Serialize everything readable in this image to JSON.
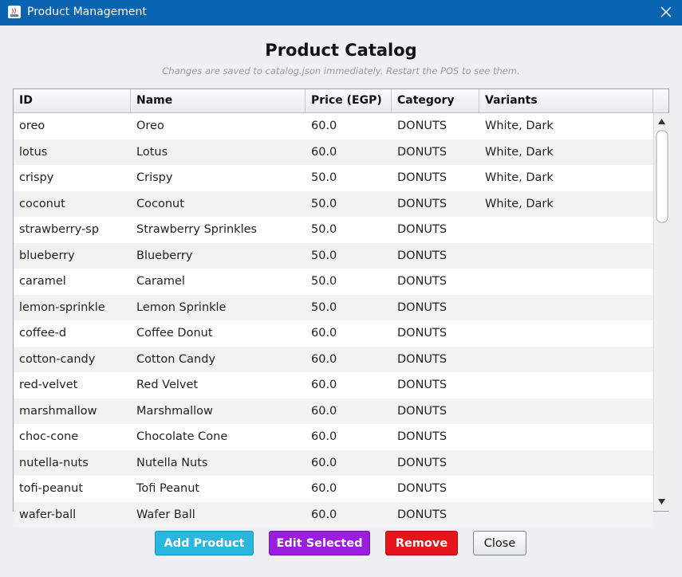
{
  "window": {
    "title": "Product Management"
  },
  "header": {
    "title": "Product Catalog",
    "subtitle": "Changes are saved to catalog.json immediately. Restart the POS to see them."
  },
  "table": {
    "columns": [
      "ID",
      "Name",
      "Price (EGP)",
      "Category",
      "Variants"
    ],
    "rows": [
      {
        "id": "oreo",
        "name": "Oreo",
        "price": "60.0",
        "category": "DONUTS",
        "variants": "White, Dark"
      },
      {
        "id": "lotus",
        "name": "Lotus",
        "price": "60.0",
        "category": "DONUTS",
        "variants": "White, Dark"
      },
      {
        "id": "crispy",
        "name": "Crispy",
        "price": "50.0",
        "category": "DONUTS",
        "variants": "White, Dark"
      },
      {
        "id": "coconut",
        "name": "Coconut",
        "price": "50.0",
        "category": "DONUTS",
        "variants": "White, Dark"
      },
      {
        "id": "strawberry-sp",
        "name": "Strawberry Sprinkles",
        "price": "50.0",
        "category": "DONUTS"
      },
      {
        "id": "blueberry",
        "name": "Blueberry",
        "price": "50.0",
        "category": "DONUTS"
      },
      {
        "id": "caramel",
        "name": "Caramel",
        "price": "50.0",
        "category": "DONUTS"
      },
      {
        "id": "lemon-sprinkle",
        "name": "Lemon Sprinkle",
        "price": "50.0",
        "category": "DONUTS"
      },
      {
        "id": "coffee-d",
        "name": "Coffee Donut",
        "price": "60.0",
        "category": "DONUTS"
      },
      {
        "id": "cotton-candy",
        "name": "Cotton Candy",
        "price": "60.0",
        "category": "DONUTS"
      },
      {
        "id": "red-velvet",
        "name": "Red Velvet",
        "price": "60.0",
        "category": "DONUTS"
      },
      {
        "id": "marshmallow",
        "name": "Marshmallow",
        "price": "60.0",
        "category": "DONUTS"
      },
      {
        "id": "choc-cone",
        "name": "Chocolate Cone",
        "price": "60.0",
        "category": "DONUTS"
      },
      {
        "id": "nutella-nuts",
        "name": "Nutella Nuts",
        "price": "60.0",
        "category": "DONUTS"
      },
      {
        "id": "tofi-peanut",
        "name": "Tofi Peanut",
        "price": "60.0",
        "category": "DONUTS"
      },
      {
        "id": "wafer-ball",
        "name": "Wafer Ball",
        "price": "60.0",
        "category": "DONUTS"
      }
    ]
  },
  "buttons": [
    "Add Product",
    "Edit Selected",
    "Remove",
    "Close"
  ]
}
